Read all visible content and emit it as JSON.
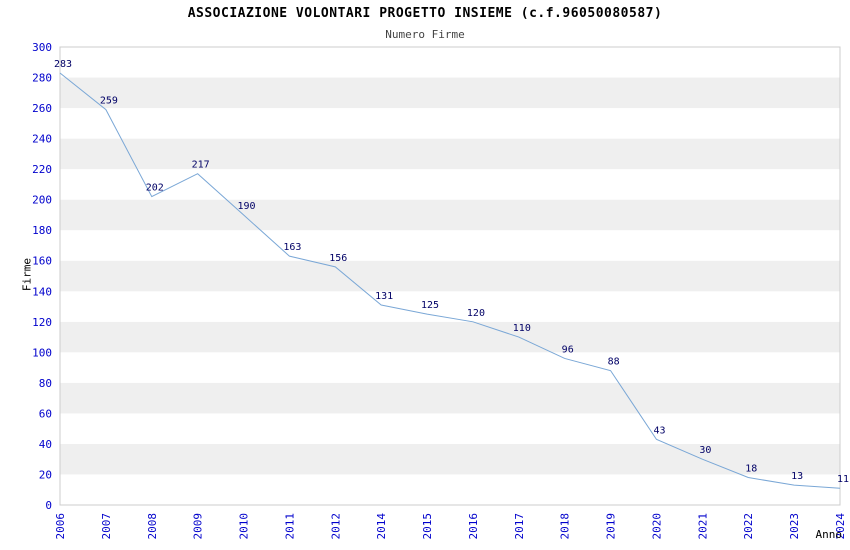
{
  "chart_data": {
    "type": "line",
    "title": "ASSOCIAZIONE VOLONTARI PROGETTO INSIEME (c.f.96050080587)",
    "subtitle": "Numero Firme",
    "xlabel": "Anno",
    "ylabel": "Firme",
    "x": [
      "2006",
      "2007",
      "2008",
      "2009",
      "2010",
      "2011",
      "2012",
      "2014",
      "2015",
      "2016",
      "2017",
      "2018",
      "2019",
      "2020",
      "2021",
      "2022",
      "2023",
      "2024"
    ],
    "values": [
      283,
      259,
      202,
      217,
      190,
      163,
      156,
      131,
      125,
      120,
      110,
      96,
      88,
      43,
      30,
      18,
      13,
      11
    ],
    "ylim": [
      0,
      300
    ],
    "ytick_step": 20,
    "grid": "horizontal-bands",
    "legend": "none",
    "point_labels_shown": true
  },
  "colors": {
    "line": "#7aa7d6",
    "tick_label": "#0000cc",
    "data_label": "#000066",
    "band_gray": "#efefef",
    "band_white": "#ffffff",
    "plot_border": "#cccccc",
    "title": "#000000",
    "subtitle": "#444444"
  }
}
